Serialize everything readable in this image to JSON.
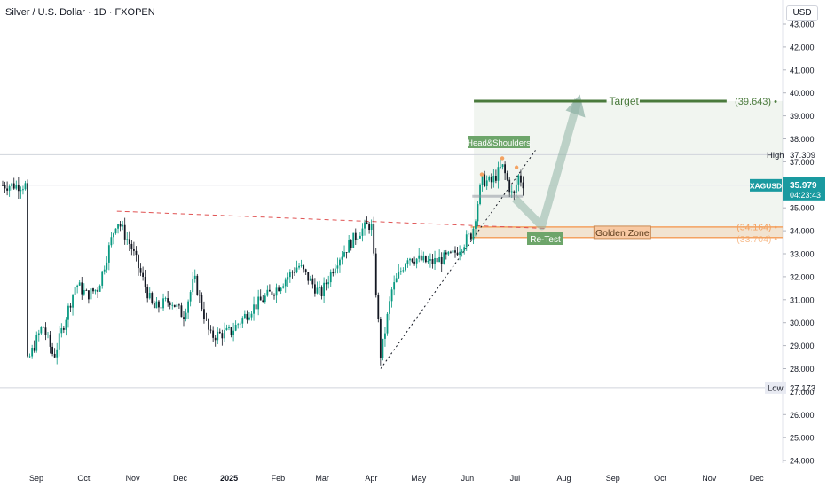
{
  "header": {
    "title": "Silver / U.S. Dollar · 1D · FXOPEN",
    "currency": "USD"
  },
  "colors": {
    "up": "#089981",
    "down": "#131722",
    "target": "#4a7a3c",
    "golden": "#f4a261",
    "badge": "#1a9aa0",
    "neckline": "#e05252"
  },
  "chart_data": {
    "type": "candlestick",
    "symbol": "XAGUSD",
    "x_ticks": [
      "Sep",
      "Oct",
      "Nov",
      "Dec",
      "2025",
      "Feb",
      "Mar",
      "Apr",
      "May",
      "Jun",
      "Jul",
      "Aug",
      "Sep",
      "Oct",
      "Nov",
      "Dec"
    ],
    "y_ticks": [
      "24.000",
      "25.000",
      "26.000",
      "27.000",
      "28.000",
      "29.000",
      "30.000",
      "31.000",
      "32.000",
      "33.000",
      "34.000",
      "35.000",
      "36.000",
      "37.000",
      "38.000",
      "39.000",
      "40.000",
      "41.000",
      "42.000",
      "43.000"
    ],
    "ylim": [
      24,
      43.6
    ],
    "price_path": [
      [
        "2024-08-26",
        28.2
      ],
      [
        "2024-09-05",
        29.9
      ],
      [
        "2024-09-12",
        28.5
      ],
      [
        "2024-09-26",
        31.7
      ],
      [
        "2024-10-03",
        31.2
      ],
      [
        "2024-10-10",
        31.5
      ],
      [
        "2024-10-22",
        34.5
      ],
      [
        "2024-10-31",
        33.3
      ],
      [
        "2024-11-14",
        30.6
      ],
      [
        "2024-11-25",
        31.0
      ],
      [
        "2024-12-03",
        30.3
      ],
      [
        "2024-12-10",
        31.9
      ],
      [
        "2024-12-20",
        29.4
      ],
      [
        "2025-01-02",
        29.6
      ],
      [
        "2025-01-15",
        30.6
      ],
      [
        "2025-01-31",
        31.5
      ],
      [
        "2025-02-14",
        32.5
      ],
      [
        "2025-02-28",
        31.2
      ],
      [
        "2025-03-10",
        32.7
      ],
      [
        "2025-03-25",
        34.0
      ],
      [
        "2025-04-01",
        34.3
      ],
      [
        "2025-04-07",
        28.5
      ],
      [
        "2025-04-14",
        31.4
      ],
      [
        "2025-04-24",
        32.9
      ],
      [
        "2025-05-08",
        32.6
      ],
      [
        "2025-05-22",
        32.9
      ],
      [
        "2025-06-04",
        33.9
      ],
      [
        "2025-06-10",
        36.2
      ],
      [
        "2025-06-16",
        36.1
      ],
      [
        "2025-06-23",
        36.8
      ],
      [
        "2025-06-30",
        35.4
      ],
      [
        "2025-07-03",
        36.4
      ],
      [
        "2025-07-07",
        35.98
      ]
    ],
    "last_price": {
      "label": "XAGUSD",
      "value": "35.979",
      "countdown": "04:23:43"
    },
    "high": {
      "label": "High",
      "value": "37.309"
    },
    "low": {
      "label": "Low",
      "value": "27.173"
    },
    "target": {
      "label": "Target",
      "value": "(39.643)",
      "price": 39.643
    },
    "golden_zone": {
      "label": "Golden Zone",
      "upper": "(34.164)",
      "lower": "(33.704)",
      "upper_price": 34.164,
      "lower_price": 33.704
    },
    "annotations": {
      "pattern": "Head&Shoulders",
      "retest": "Re-Test"
    }
  }
}
